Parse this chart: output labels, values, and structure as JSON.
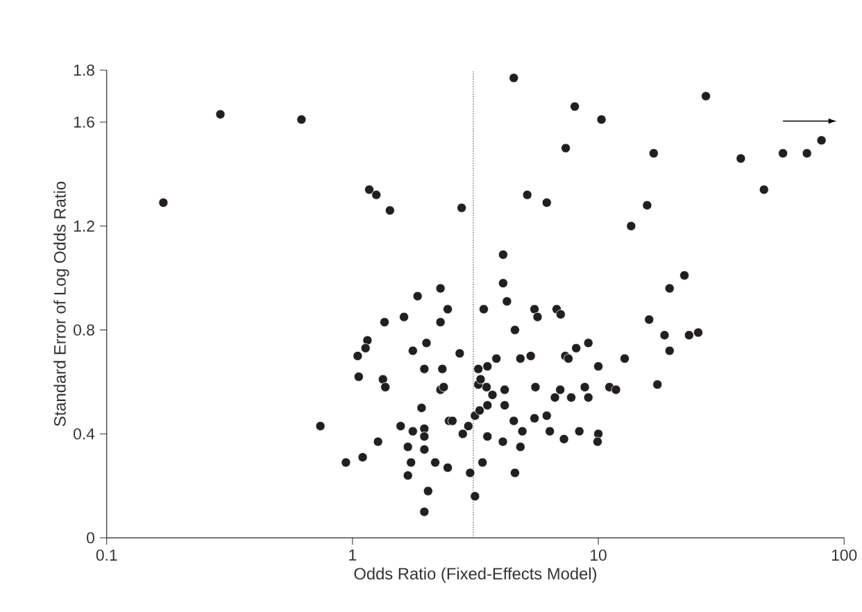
{
  "chart_data": {
    "type": "scatter",
    "xlabel": "Odds Ratio (Fixed-Effects Model)",
    "ylabel": "Standard Error of Log Odds Ratio",
    "log": "x",
    "xlim": [
      0.1,
      100
    ],
    "xticks": [
      0.1,
      1,
      10,
      100
    ],
    "ylim": [
      0,
      1.8
    ],
    "yticks": [
      0,
      0.4,
      0.8,
      1.2,
      1.6,
      1.8
    ],
    "grid": false,
    "ref_lines": [
      {
        "axis": "x",
        "value": 3.1,
        "color": "#888888",
        "line_style": "dotted"
      }
    ],
    "series": [
      {
        "color": "#231f20",
        "x": [
          0.17,
          0.29,
          0.62,
          1.17,
          1.25,
          1.42,
          2.78,
          4.53,
          8.02,
          10.3,
          7.37,
          16.8,
          27.4,
          38.0,
          56.4,
          70.6,
          80.9,
          47.2,
          5.14,
          6.17,
          15.8,
          13.6,
          2.28,
          1.84,
          2.44,
          3.42,
          1.35,
          1.62,
          2.28,
          1.15,
          1.13,
          1.05,
          2.0,
          1.76,
          2.73,
          1.06,
          1.33,
          1.36,
          1.96,
          2.32,
          2.28,
          2.35,
          1.91,
          0.74,
          1.57,
          1.76,
          1.96,
          1.96,
          1.27,
          1.68,
          1.96,
          0.94,
          1.1,
          1.73,
          2.17,
          2.44,
          1.68,
          2.03,
          1.96,
          2.47,
          2.55,
          2.81,
          2.96,
          3.01,
          3.15,
          3.15,
          3.38,
          3.54,
          3.54,
          3.29,
          3.71,
          3.51,
          3.25,
          3.32,
          3.25,
          3.54,
          3.85,
          4.1,
          4.1,
          4.25,
          5.5,
          5.66,
          6.77,
          7.03,
          4.58,
          16.1,
          22.4,
          19.5,
          18.6,
          19.5,
          17.4,
          9.11,
          8.13,
          7.34,
          7.56,
          12.8,
          10.0,
          5.31,
          4.82,
          5.55,
          4.16,
          4.16,
          7.0,
          6.66,
          7.76,
          8.81,
          9.11,
          11.1,
          11.8,
          4.53,
          5.5,
          6.17,
          4.91,
          6.35,
          8.37,
          10.0,
          9.93,
          7.25,
          4.09,
          4.82,
          4.58,
          23.4,
          25.5
        ],
        "values": [
          1.29,
          1.63,
          1.61,
          1.34,
          1.32,
          1.26,
          1.27,
          1.77,
          1.66,
          1.61,
          1.5,
          1.48,
          1.7,
          1.46,
          1.48,
          1.48,
          1.53,
          1.34,
          1.32,
          1.29,
          1.28,
          1.2,
          0.96,
          0.93,
          0.88,
          0.88,
          0.83,
          0.85,
          0.83,
          0.76,
          0.73,
          0.7,
          0.75,
          0.72,
          0.71,
          0.62,
          0.61,
          0.58,
          0.65,
          0.65,
          0.57,
          0.58,
          0.5,
          0.43,
          0.43,
          0.41,
          0.42,
          0.39,
          0.37,
          0.35,
          0.34,
          0.29,
          0.31,
          0.29,
          0.29,
          0.27,
          0.24,
          0.18,
          0.1,
          0.45,
          0.45,
          0.4,
          0.43,
          0.25,
          0.16,
          0.47,
          0.29,
          0.39,
          0.51,
          0.49,
          0.55,
          0.58,
          0.59,
          0.61,
          0.65,
          0.66,
          0.69,
          1.09,
          0.98,
          0.91,
          0.88,
          0.85,
          0.88,
          0.86,
          0.8,
          0.84,
          1.01,
          0.96,
          0.78,
          0.72,
          0.59,
          0.75,
          0.73,
          0.7,
          0.69,
          0.69,
          0.66,
          0.7,
          0.69,
          0.58,
          0.57,
          0.51,
          0.57,
          0.54,
          0.54,
          0.58,
          0.54,
          0.58,
          0.57,
          0.45,
          0.46,
          0.47,
          0.41,
          0.41,
          0.41,
          0.4,
          0.37,
          0.38,
          0.37,
          0.35,
          0.25,
          0.78,
          0.79
        ]
      }
    ]
  }
}
